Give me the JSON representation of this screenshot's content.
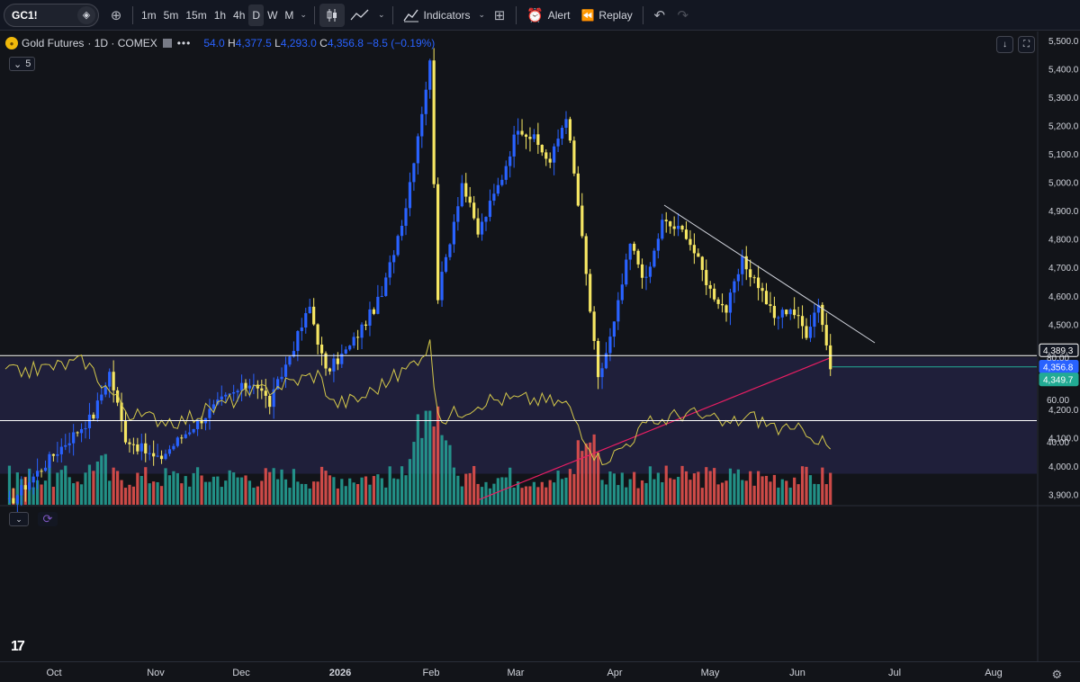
{
  "toolbar": {
    "symbol": "GC1!",
    "timeframes": [
      "1m",
      "5m",
      "15m",
      "1h",
      "4h",
      "D",
      "W",
      "M"
    ],
    "active_timeframe": "D",
    "indicators_label": "Indicators",
    "alert_label": "Alert",
    "replay_label": "Replay"
  },
  "legend": {
    "name": "Gold Futures",
    "interval_exchange": "· 1D · COMEX",
    "open_partial": "54.0",
    "high_label": "H",
    "high": "4,377.5",
    "low_label": "L",
    "low": "4,293.0",
    "close_label": "C",
    "close": "4,356.8",
    "change": "−8.5 (−0.19%)",
    "collapse_count": "5"
  },
  "price_axis": {
    "ticks": [
      "5,500.0",
      "5,400.0",
      "5,300.0",
      "5,200.0",
      "5,100.0",
      "5,000.0",
      "4,900.0",
      "4,800.0",
      "4,700.0",
      "4,600.0",
      "4,500.0",
      "4,200.0",
      "4,100.0",
      "4,000.0",
      "3,900.0"
    ],
    "labels": [
      {
        "text": "4,389.3",
        "color": "#ffffff"
      },
      {
        "text": "4,356.8",
        "color": "#2962ff"
      },
      {
        "text": "4,349.7",
        "color": "#22ab94"
      }
    ]
  },
  "rsi_axis": {
    "ticks": [
      "80.00",
      "60.00",
      "40.00"
    ]
  },
  "time_axis": [
    "Oct",
    "Nov",
    "Dec",
    "2026",
    "Feb",
    "Mar",
    "Apr",
    "May",
    "Jun",
    "Jul",
    "Aug"
  ],
  "colors": {
    "up": "#2962ff",
    "down": "#f5e663",
    "vol_up": "#26a69a",
    "vol_down": "#ef5350",
    "ma": "#e91e63",
    "rsi": "#d4c84a",
    "rsi_band": "#1f1f3a",
    "background": "#121419"
  },
  "chart_data": {
    "type": "candlestick",
    "x_range": [
      "Oct",
      "Aug"
    ],
    "y_range": [
      3870,
      5520
    ],
    "horizontal_level": 4389.3,
    "last_price": 4356.8,
    "trendline": {
      "from": [
        4920,
        "Apr"
      ],
      "to": [
        4430,
        "Jun"
      ]
    },
    "rsi_levels": [
      80,
      60,
      40
    ],
    "rsi_midline": 50,
    "anchors": [
      [
        1,
        3870
      ],
      [
        12,
        4040
      ],
      [
        22,
        4180
      ],
      [
        26,
        4330
      ],
      [
        30,
        4100
      ],
      [
        38,
        4020
      ],
      [
        46,
        4130
      ],
      [
        54,
        4230
      ],
      [
        62,
        4300
      ],
      [
        66,
        4220
      ],
      [
        76,
        4560
      ],
      [
        80,
        4330
      ],
      [
        86,
        4420
      ],
      [
        94,
        4600
      ],
      [
        100,
        4920
      ],
      [
        106,
        5420
      ],
      [
        108,
        4600
      ],
      [
        114,
        5000
      ],
      [
        118,
        4820
      ],
      [
        124,
        5020
      ],
      [
        128,
        5200
      ],
      [
        132,
        5150
      ],
      [
        136,
        5070
      ],
      [
        140,
        5240
      ],
      [
        143,
        4920
      ],
      [
        148,
        4300
      ],
      [
        152,
        4500
      ],
      [
        156,
        4780
      ],
      [
        160,
        4650
      ],
      [
        164,
        4860
      ],
      [
        170,
        4820
      ],
      [
        176,
        4620
      ],
      [
        180,
        4550
      ],
      [
        184,
        4720
      ],
      [
        188,
        4640
      ],
      [
        192,
        4520
      ],
      [
        196,
        4560
      ],
      [
        200,
        4470
      ],
      [
        203,
        4580
      ],
      [
        206,
        4350
      ]
    ]
  }
}
